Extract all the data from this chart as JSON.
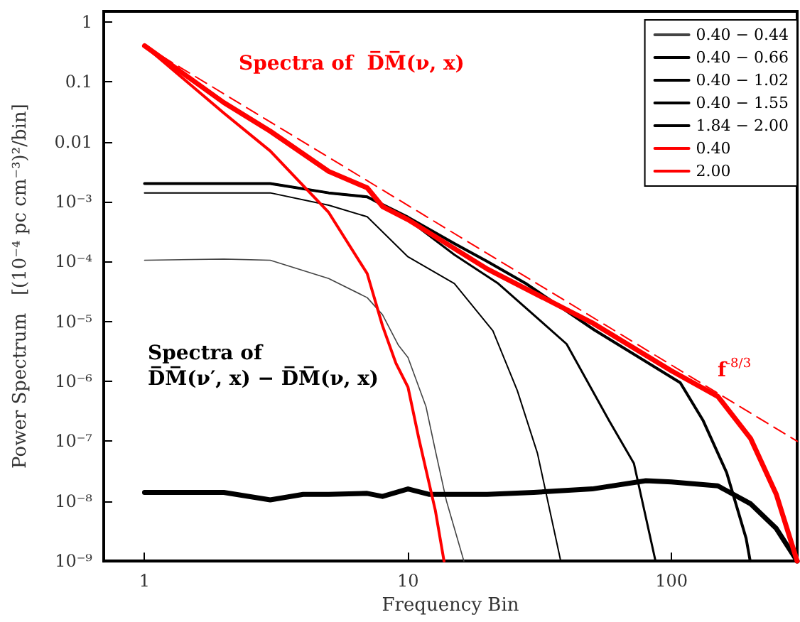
{
  "chart_data": {
    "type": "line",
    "xlabel": "Frequency Bin",
    "ylabel": "Power Spectrum   [(10⁻⁴ pc cm⁻³)²/bin]",
    "log": "xy",
    "grid": false,
    "legend": "top right",
    "marker": "none",
    "xlim": [
      0.7,
      300
    ],
    "xticks": [
      1,
      10,
      100
    ],
    "ylim": [
      1e-09,
      1.5
    ],
    "yticks": [
      1,
      0.1,
      0.01,
      {
        "value": 0.001,
        "label": "10⁻³"
      },
      {
        "value": 0.0001,
        "label": "10⁻⁴"
      },
      {
        "value": 1e-05,
        "label": "10⁻⁵"
      },
      {
        "value": 1e-06,
        "label": "10⁻⁶"
      },
      {
        "value": 1e-07,
        "label": "10⁻⁷"
      },
      {
        "value": 1e-08,
        "label": "10⁻⁸"
      },
      {
        "value": 1e-09,
        "label": "10⁻⁹"
      }
    ],
    "series": [
      {
        "name": "0.40 − 0.44",
        "color": "#444444",
        "x": [
          1,
          2,
          3,
          5,
          7,
          8,
          9.2,
          10,
          11.7,
          12.7,
          14,
          16.3
        ],
        "values": [
          0.000105,
          0.00011,
          0.000105,
          5.2e-05,
          2.5e-05,
          1.3e-05,
          4e-06,
          2.5e-06,
          3.8e-07,
          7e-08,
          1e-08,
          1e-09
        ]
      },
      {
        "name": "0.40 − 0.66",
        "color": "#000000",
        "x": [
          1,
          2,
          3,
          5,
          7,
          10,
          15,
          21,
          26,
          31,
          38
        ],
        "values": [
          0.0014,
          0.0014,
          0.0014,
          0.00087,
          0.00056,
          0.00012,
          4.3e-05,
          7e-06,
          7e-07,
          6.3e-08,
          1e-09
        ]
      },
      {
        "name": "0.40 − 1.02",
        "color": "#000000",
        "x": [
          1,
          2,
          3,
          5,
          7,
          10,
          15,
          22,
          40,
          58,
          72,
          87
        ],
        "values": [
          0.002,
          0.002,
          0.002,
          0.0014,
          0.0012,
          0.0005,
          0.00013,
          4.3e-05,
          4.2e-06,
          2.2e-07,
          4.3e-08,
          1e-09
        ]
      },
      {
        "name": "0.40 − 1.55",
        "color": "#000000",
        "x": [
          1,
          2,
          3,
          5,
          7,
          10,
          15,
          20,
          28,
          51,
          108,
          132,
          162,
          192,
          199
        ],
        "values": [
          0.002,
          0.002,
          0.002,
          0.0014,
          0.0012,
          0.00055,
          0.0002,
          0.0001,
          4.3e-05,
          7.2e-06,
          9.5e-07,
          2.2e-07,
          3e-08,
          2.4e-09,
          1e-09
        ]
      },
      {
        "name": "1.84 − 2.00",
        "color": "#000000",
        "x": [
          1,
          2,
          3,
          4,
          5,
          7,
          8,
          10,
          12,
          20,
          30,
          50,
          80,
          100,
          150,
          200,
          250,
          300
        ],
        "values": [
          1.4e-08,
          1.4e-08,
          1.05e-08,
          1.3e-08,
          1.3e-08,
          1.35e-08,
          1.2e-08,
          1.6e-08,
          1.3e-08,
          1.3e-08,
          1.4e-08,
          1.6e-08,
          2.2e-08,
          2.1e-08,
          1.8e-08,
          9e-09,
          3.5e-09,
          1e-09
        ]
      },
      {
        "name": "0.40",
        "color": "#ff0000",
        "x": [
          1,
          2,
          3,
          5,
          7,
          8,
          9,
          10,
          11,
          12.7,
          13.7
        ],
        "values": [
          0.4,
          0.03,
          0.007,
          0.00066,
          6.3e-05,
          8.5e-06,
          2e-06,
          8e-07,
          1.1e-07,
          7e-09,
          1e-09
        ]
      },
      {
        "name": "2.00",
        "color": "#ff0000",
        "x": [
          1,
          2,
          3,
          5,
          7,
          8,
          10,
          20,
          50,
          100,
          150,
          200,
          250,
          300
        ],
        "values": [
          0.4,
          0.045,
          0.015,
          0.0032,
          0.0017,
          0.00083,
          0.0005,
          7.5e-05,
          9.5e-06,
          1.5e-06,
          5.6e-07,
          1.1e-07,
          1.3e-08,
          1e-09
        ]
      },
      {
        "color": "#ff0000",
        "line_style": "dashed",
        "x": [
          1,
          300
        ],
        "values": [
          0.4,
          1e-07
        ]
      }
    ],
    "annotations": [
      "Spectra of  D̅M̅(ν, x)",
      "Spectra of\nD̅M̅(ν′, x) − D̅M̅(ν, x)",
      "f$^{-8/3}$"
    ]
  }
}
